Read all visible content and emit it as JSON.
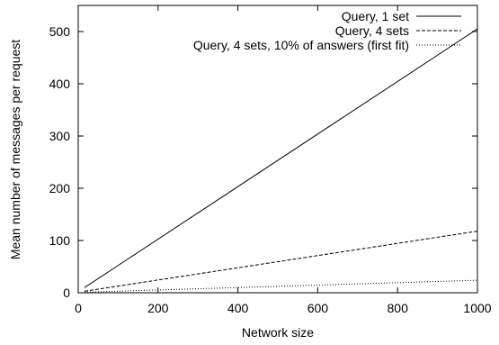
{
  "chart_data": {
    "type": "line",
    "title": "",
    "xlabel": "Network size",
    "ylabel": "Mean number of messages per request",
    "xlim": [
      0,
      1000
    ],
    "ylim": [
      0,
      550
    ],
    "xticks": [
      0,
      200,
      400,
      600,
      800,
      1000
    ],
    "yticks": [
      0,
      100,
      200,
      300,
      400,
      500
    ],
    "grid": false,
    "legend_position": "top-right",
    "series": [
      {
        "name": "Query, 1 set",
        "dash": "solid",
        "x": [
          16,
          1000
        ],
        "y": [
          10,
          505
        ]
      },
      {
        "name": "Query, 4 sets",
        "dash": "dashed",
        "x": [
          16,
          1000
        ],
        "y": [
          3,
          118
        ]
      },
      {
        "name": "Query, 4 sets, 10% of answers (first fit)",
        "dash": "dotted",
        "x": [
          16,
          1000
        ],
        "y": [
          1,
          24
        ]
      }
    ]
  }
}
